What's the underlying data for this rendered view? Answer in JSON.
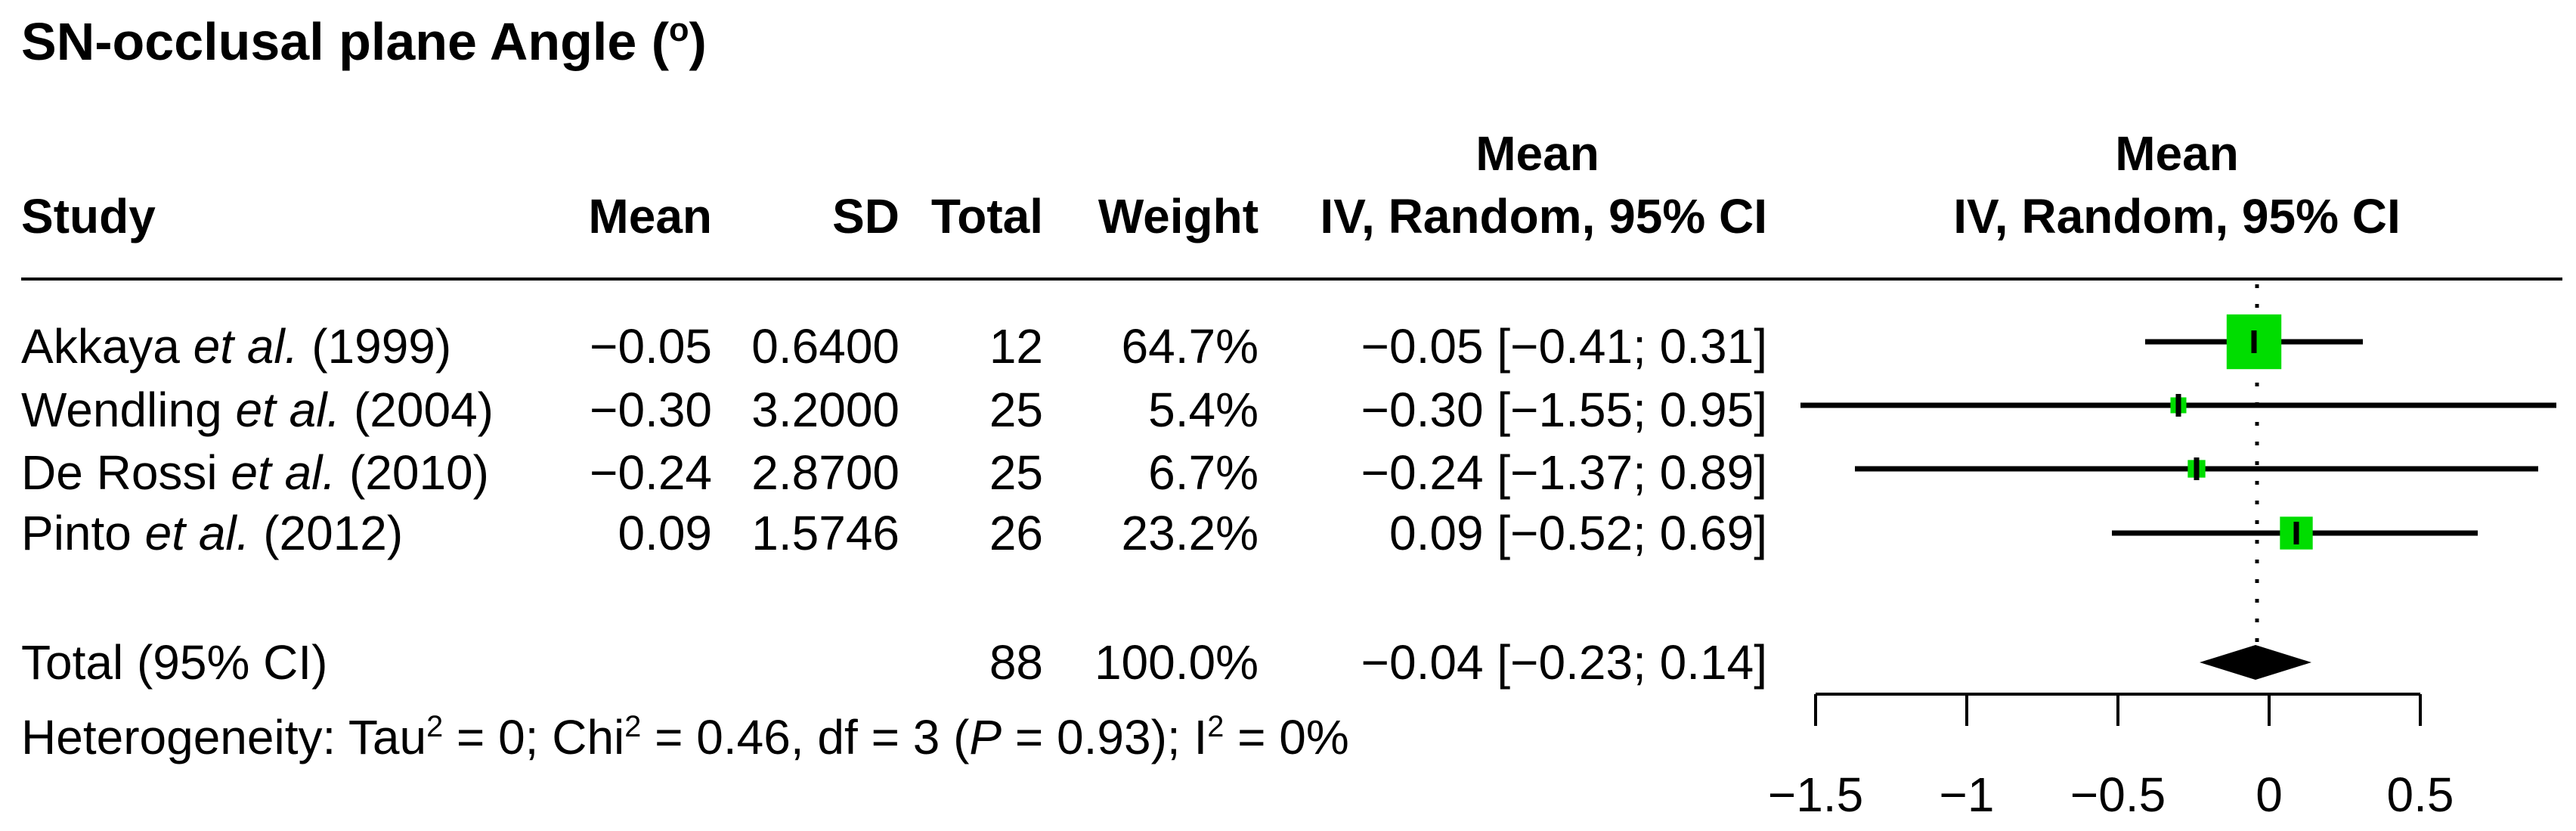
{
  "figure": {
    "title_segments": [
      {
        "t": "SN-occlusal plane Angle ("
      },
      {
        "t": "o",
        "sup": true
      },
      {
        "t": ")"
      }
    ]
  },
  "colors": {
    "square_green": "#00dd00",
    "ink": "#000000",
    "background": "#ffffff"
  },
  "table": {
    "headers": {
      "study": "Study",
      "mean": "Mean",
      "sd": "SD",
      "total": "Total",
      "weight": "Weight",
      "effect_line1": "Mean",
      "effect_line2": "IV, Random, 95% CI",
      "plot_line1": "Mean",
      "plot_line2": "IV, Random, 95% CI"
    },
    "rows": [
      {
        "label": {
          "before": "Akkaya ",
          "italic": "et al.",
          "after": " (1999)"
        },
        "mean": "−0.05",
        "sd": "0.6400",
        "total": "12",
        "weight": "64.7%",
        "ci_text": "−0.05 [−0.41; 0.31]"
      },
      {
        "label": {
          "before": "Wendling ",
          "italic": "et al.",
          "after": " (2004)"
        },
        "mean": "−0.30",
        "sd": "3.2000",
        "total": "25",
        "weight": "5.4%",
        "ci_text": "−0.30 [−1.55; 0.95]"
      },
      {
        "label": {
          "before": "De Rossi ",
          "italic": "et al.",
          "after": " (2010)"
        },
        "mean": "−0.24",
        "sd": "2.8700",
        "total": "25",
        "weight": "6.7%",
        "ci_text": "−0.24 [−1.37; 0.89]"
      },
      {
        "label": {
          "before": "Pinto ",
          "italic": "et al.",
          "after": " (2012)"
        },
        "mean": "0.09",
        "sd": "1.5746",
        "total": "26",
        "weight": "23.2%",
        "ci_text": "0.09 [−0.52; 0.69]"
      }
    ],
    "total_row": {
      "label": "Total (95% CI)",
      "total": "88",
      "weight": "100.0%",
      "ci_text": "−0.04 [−0.23; 0.14]"
    },
    "heterogeneity_segments": [
      {
        "t": "Heterogeneity: Tau"
      },
      {
        "t": "2",
        "sup": true
      },
      {
        "t": " = 0; Chi"
      },
      {
        "t": "2",
        "sup": true
      },
      {
        "t": " = 0.46, df = 3 ("
      },
      {
        "t": "P",
        "italic": true
      },
      {
        "t": " = 0.93); I"
      },
      {
        "t": "2",
        "sup": true
      },
      {
        "t": " = 0%"
      }
    ]
  },
  "chart_data": {
    "type": "forest",
    "title": "SN-occlusal plane Angle (°)",
    "effect_label": "Mean",
    "model_label": "IV, Random, 95% CI",
    "studies": [
      {
        "name": "Akkaya et al. (1999)",
        "mean": -0.05,
        "sd": 0.64,
        "total": 12,
        "weight_pct": 64.7,
        "effect": -0.05,
        "ci_low": -0.41,
        "ci_high": 0.31
      },
      {
        "name": "Wendling et al. (2004)",
        "mean": -0.3,
        "sd": 3.2,
        "total": 25,
        "weight_pct": 5.4,
        "effect": -0.3,
        "ci_low": -1.55,
        "ci_high": 0.95
      },
      {
        "name": "De Rossi et al. (2010)",
        "mean": -0.24,
        "sd": 2.87,
        "total": 25,
        "weight_pct": 6.7,
        "effect": -0.24,
        "ci_low": -1.37,
        "ci_high": 0.89
      },
      {
        "name": "Pinto et al. (2012)",
        "mean": 0.09,
        "sd": 1.5746,
        "total": 26,
        "weight_pct": 23.2,
        "effect": 0.09,
        "ci_low": -0.52,
        "ci_high": 0.69
      }
    ],
    "overall": {
      "label": "Total (95% CI)",
      "total": 88,
      "weight_pct": 100.0,
      "effect": -0.04,
      "ci_low": -0.23,
      "ci_high": 0.14
    },
    "heterogeneity": {
      "tau2": 0,
      "chi2": 0.46,
      "df": 3,
      "p": 0.93,
      "i2_pct": 0
    },
    "axis": {
      "ticks": [
        {
          "v": -1.5,
          "label": "−1.5"
        },
        {
          "v": -1.0,
          "label": "−1"
        },
        {
          "v": -0.5,
          "label": "−0.5"
        },
        {
          "v": 0.0,
          "label": "0"
        },
        {
          "v": 0.5,
          "label": "0.5"
        }
      ],
      "reference_value": -0.04,
      "range": [
        -1.55,
        0.95
      ],
      "grid": false
    }
  }
}
